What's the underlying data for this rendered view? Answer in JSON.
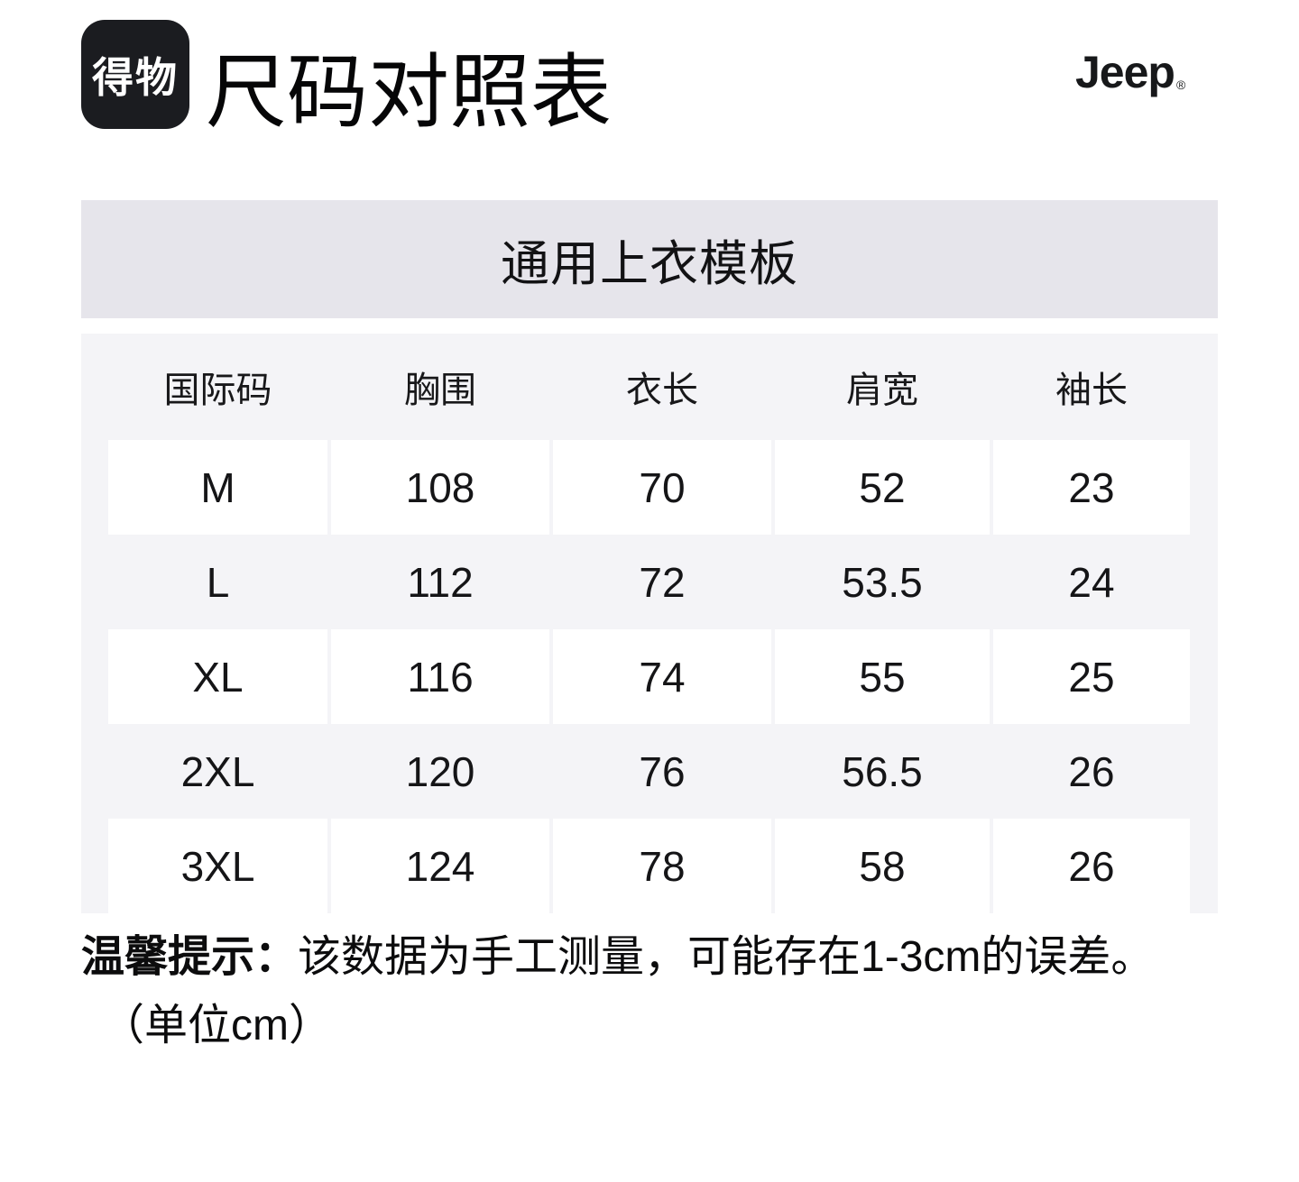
{
  "header": {
    "logo_text": "得物",
    "title": "尺码对照表",
    "brand": "Jeep",
    "brand_reg": "®"
  },
  "band": {
    "label": "通用上衣模板"
  },
  "size_table": {
    "columns": [
      "国际码",
      "胸围",
      "衣长",
      "肩宽",
      "袖长"
    ],
    "rows": [
      [
        "M",
        "108",
        "70",
        "52",
        "23"
      ],
      [
        "L",
        "112",
        "72",
        "53.5",
        "24"
      ],
      [
        "XL",
        "116",
        "74",
        "55",
        "25"
      ],
      [
        "2XL",
        "120",
        "76",
        "56.5",
        "26"
      ],
      [
        "3XL",
        "124",
        "78",
        "58",
        "26"
      ]
    ]
  },
  "note": {
    "prefix": "温馨提示：",
    "line1": "该数据为手工测量，可能存在1-3cm的误差。",
    "line2": "（单位cm）"
  },
  "colors": {
    "logo_bg": "#1b1c20",
    "band_bg": "#e6e5eb",
    "table_bg": "#f4f4f7",
    "cell_bg": "#ffffff",
    "text": "#141414"
  }
}
